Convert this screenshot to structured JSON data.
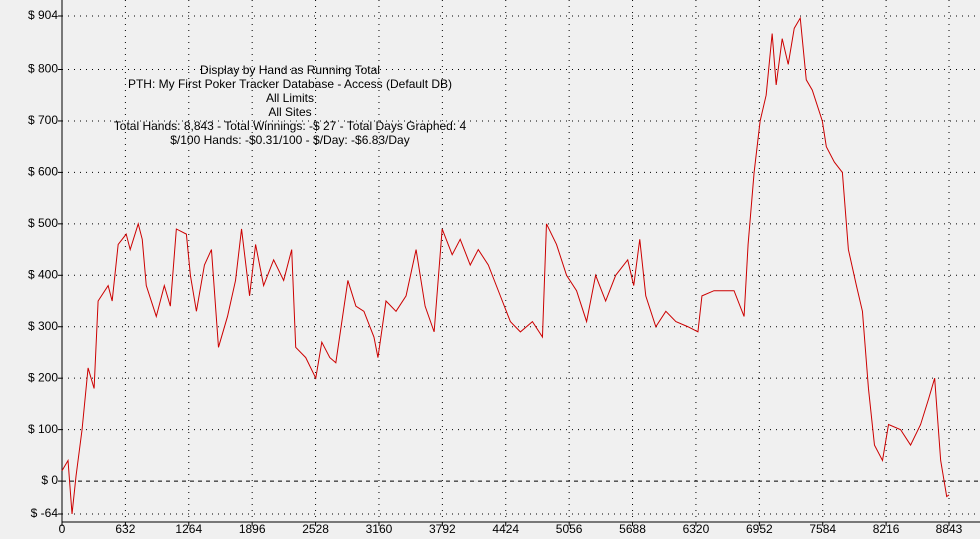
{
  "chart_data": {
    "type": "line",
    "annotations": [
      "Display by Hand as Running Total",
      "PTH: My First Poker Tracker Database - Access (Default DB)",
      "All Limits",
      "All Sites",
      "Total Hands: 8,843 - Total Winnings: -$ 27 - Total Days Graphed: 4",
      "$/100 Hands: -$0.31/100 - $/Day: -$6.83/Day"
    ],
    "x": [
      0,
      60,
      100,
      140,
      200,
      260,
      320,
      360,
      460,
      500,
      560,
      640,
      680,
      760,
      800,
      840,
      940,
      1020,
      1080,
      1140,
      1240,
      1280,
      1340,
      1420,
      1490,
      1560,
      1650,
      1730,
      1790,
      1870,
      1930,
      2010,
      2110,
      2210,
      2290,
      2330,
      2430,
      2530,
      2590,
      2670,
      2730,
      2850,
      2930,
      3010,
      3110,
      3150,
      3230,
      3330,
      3430,
      3530,
      3620,
      3710,
      3790,
      3890,
      3970,
      4070,
      4150,
      4250,
      4370,
      4470,
      4570,
      4690,
      4790,
      4830,
      4930,
      5030,
      5130,
      5230,
      5320,
      5420,
      5520,
      5640,
      5700,
      5760,
      5820,
      5920,
      6020,
      6120,
      6240,
      6340,
      6380,
      6500,
      6620,
      6700,
      6800,
      6840,
      6900,
      6960,
      7020,
      7080,
      7120,
      7180,
      7240,
      7300,
      7360,
      7420,
      7480,
      7580,
      7620,
      7700,
      7780,
      7840,
      7920,
      7980,
      8040,
      8100,
      8180,
      8240,
      8360,
      8460,
      8560,
      8640,
      8700,
      8760,
      8820,
      8843
    ],
    "series": [
      {
        "color": "#cc0000",
        "values": [
          20,
          40,
          -64,
          10,
          100,
          220,
          180,
          350,
          380,
          350,
          460,
          480,
          450,
          500,
          470,
          380,
          320,
          380,
          340,
          490,
          480,
          400,
          330,
          420,
          450,
          260,
          320,
          390,
          490,
          360,
          460,
          380,
          430,
          390,
          450,
          260,
          240,
          200,
          270,
          240,
          230,
          390,
          340,
          330,
          280,
          240,
          350,
          330,
          360,
          450,
          340,
          290,
          490,
          440,
          470,
          420,
          450,
          420,
          360,
          310,
          290,
          310,
          280,
          500,
          460,
          400,
          370,
          310,
          400,
          350,
          400,
          430,
          380,
          470,
          360,
          300,
          330,
          310,
          300,
          290,
          360,
          370,
          370,
          370,
          320,
          460,
          600,
          700,
          750,
          870,
          770,
          860,
          810,
          880,
          900,
          780,
          760,
          700,
          650,
          620,
          600,
          450,
          380,
          330,
          180,
          70,
          40,
          110,
          100,
          70,
          110,
          160,
          200,
          40,
          -30,
          -27
        ]
      }
    ],
    "xlim": [
      0,
      8843
    ],
    "xticks": [
      0,
      632,
      1264,
      1896,
      2528,
      3160,
      3792,
      4424,
      5056,
      5688,
      6320,
      6952,
      7584,
      8216,
      8843
    ],
    "ylim": [
      -64,
      904
    ],
    "yticks": [
      {
        "value": -64,
        "label": "$ -64"
      },
      {
        "value": 0,
        "label": "$ 0"
      },
      {
        "value": 100,
        "label": "$ 100"
      },
      {
        "value": 200,
        "label": "$ 200"
      },
      {
        "value": 300,
        "label": "$ 300"
      },
      {
        "value": 400,
        "label": "$ 400"
      },
      {
        "value": 500,
        "label": "$ 500"
      },
      {
        "value": 600,
        "label": "$ 600"
      },
      {
        "value": 700,
        "label": "$ 700"
      },
      {
        "value": 800,
        "label": "$ 800"
      },
      {
        "value": 904,
        "label": "$ 904"
      }
    ],
    "grid": true
  }
}
